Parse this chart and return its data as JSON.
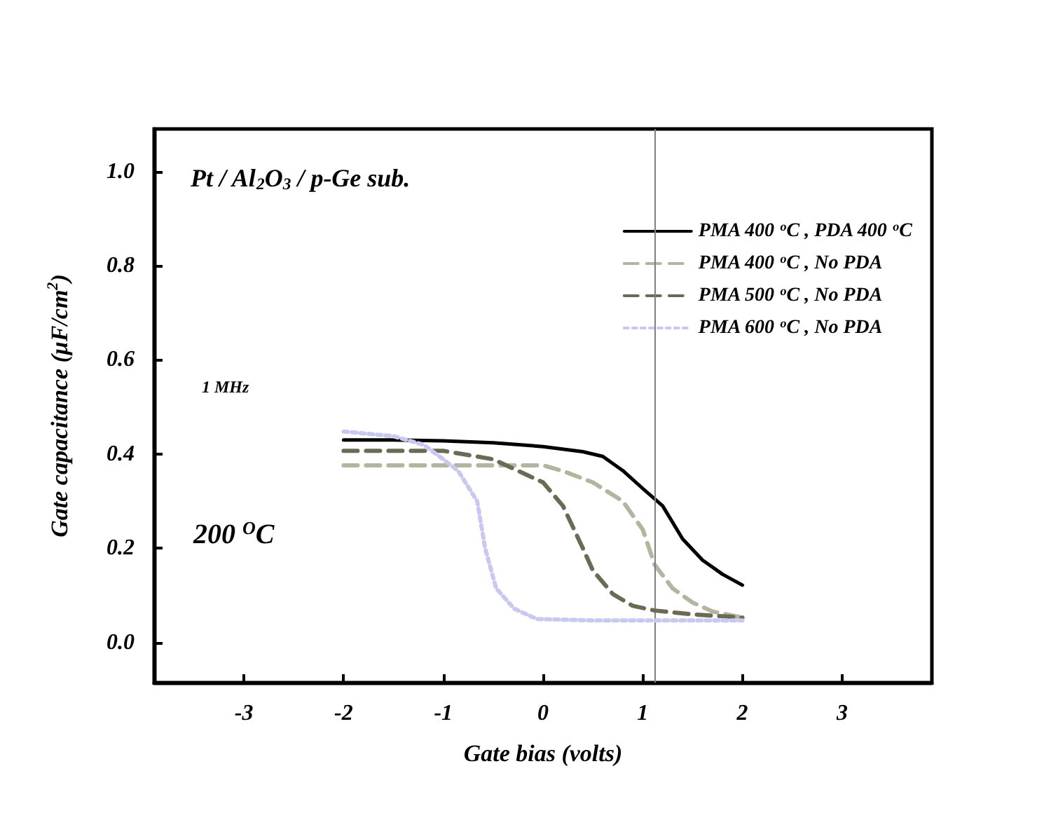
{
  "chart_data": {
    "type": "line",
    "xlabel": "Gate bias (volts)",
    "ylabel": "Gate capacitance (μF/cm$^{2}$)",
    "annotations": [
      "Pt / Al$_{2}$O$_{3}$ / p-Ge sub.",
      "1 MHz",
      "200 $^{O}$C"
    ],
    "xlim": [
      -3.9,
      3.9
    ],
    "xticks": [
      -3,
      -2,
      -1,
      0,
      1,
      2,
      3
    ],
    "ylim": [
      -0.085,
      1.09
    ],
    "yticks": [
      {
        "value": 0,
        "label": "0.0"
      },
      0.2,
      0.4,
      0.6,
      0.8,
      {
        "value": 1,
        "label": "1.0"
      }
    ],
    "grid": false,
    "legend": "top right",
    "marker": "none",
    "ref_lines": [
      {
        "axis": "x",
        "value": 1.12,
        "label": null,
        "color": "#808080",
        "line_style": "solid"
      }
    ],
    "series": [
      {
        "name": "PMA 400 $^{o}$C , PDA 400 $^{o}$C",
        "color": "#000000",
        "line_style": "solid",
        "x": [
          -2,
          -1.5,
          -1,
          -0.5,
          0,
          0.4,
          0.6,
          0.8,
          1.0,
          1.2,
          1.4,
          1.6,
          1.8,
          2
        ],
        "values": [
          0.43,
          0.43,
          0.428,
          0.424,
          0.416,
          0.405,
          0.395,
          0.365,
          0.327,
          0.29,
          0.22,
          0.175,
          0.145,
          0.122
        ]
      },
      {
        "name": "PMA 400 $^{o}$C , No PDA",
        "color": "#b4b4a0",
        "line_style": "dashed",
        "x": [
          -2,
          -1,
          0,
          0.2,
          0.5,
          0.8,
          1.0,
          1.12,
          1.3,
          1.5,
          1.7,
          2
        ],
        "values": [
          0.376,
          0.376,
          0.376,
          0.364,
          0.34,
          0.3,
          0.24,
          0.165,
          0.115,
          0.085,
          0.066,
          0.053
        ]
      },
      {
        "name": "PMA 500 $^{o}$C , No PDA",
        "color": "#6b6b55",
        "line_style": "dashed",
        "x": [
          -2,
          -1,
          -0.5,
          0,
          0.2,
          0.4,
          0.5,
          0.7,
          0.9,
          1.12,
          1.5,
          2
        ],
        "values": [
          0.407,
          0.407,
          0.389,
          0.34,
          0.29,
          0.2,
          0.153,
          0.103,
          0.078,
          0.068,
          0.06,
          0.053
        ]
      },
      {
        "name": "PMA 600 $^{o}$C , No PDA",
        "color": "#c8c8f0",
        "line_style": "dotted",
        "x": [
          -2,
          -1.5,
          -1.2,
          -1,
          -0.85,
          -0.66,
          -0.58,
          -0.47,
          -0.29,
          -0.06,
          0.5,
          1,
          1.5,
          2
        ],
        "values": [
          0.448,
          0.438,
          0.42,
          0.389,
          0.364,
          0.3,
          0.2,
          0.115,
          0.072,
          0.05,
          0.047,
          0.047,
          0.047,
          0.047
        ]
      }
    ]
  }
}
